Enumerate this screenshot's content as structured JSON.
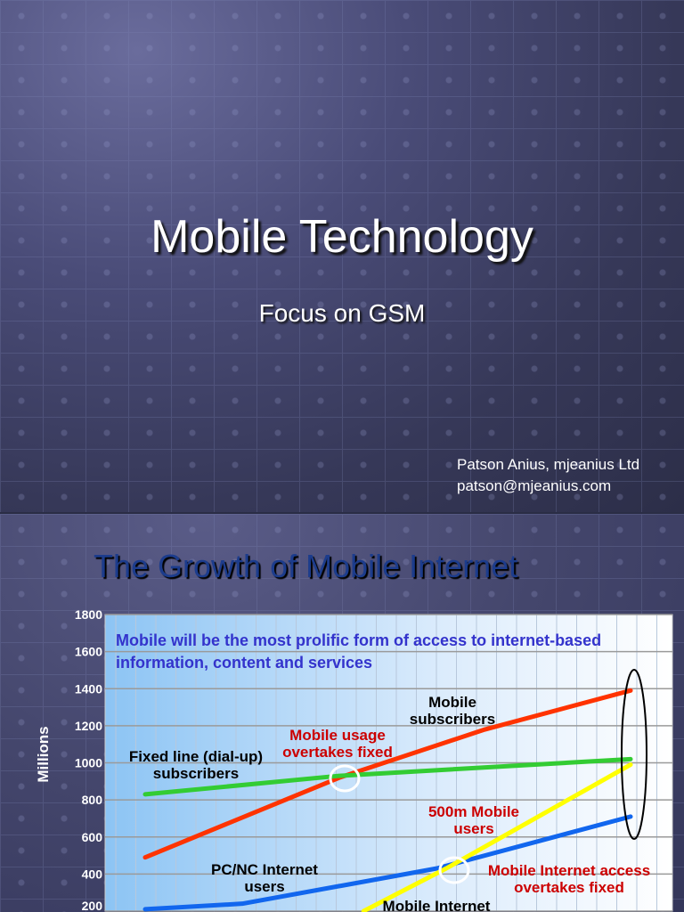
{
  "slide1": {
    "title": "Mobile Technology",
    "subtitle": "Focus on GSM",
    "author": "Patson Anius, mjeanius Ltd",
    "email": "patson@mjeanius.com"
  },
  "slide2": {
    "title": "The Growth of Mobile Internet"
  },
  "chart_data": {
    "type": "line",
    "ylabel": "Millions",
    "ylim": [
      200,
      1800
    ],
    "yticks": [
      "1800",
      "1600",
      "1400",
      "1200",
      "1000",
      "800",
      "600",
      "400",
      "200"
    ],
    "grid": true,
    "headline": [
      "Mobile will be the most prolific form of access to internet-based",
      "information, content and services"
    ],
    "series": [
      {
        "name": "Mobile subscribers",
        "color": "#ff3300",
        "points": [
          [
            0,
            490
          ],
          [
            4,
            920
          ],
          [
            7,
            1180
          ],
          [
            10,
            1390
          ]
        ]
      },
      {
        "name": "Fixed line (dial-up) subscribers",
        "color": "#33cc33",
        "points": [
          [
            0,
            830
          ],
          [
            4,
            930
          ],
          [
            10,
            1020
          ]
        ]
      },
      {
        "name": "PC/NC Internet users",
        "color": "#1166ee",
        "points": [
          [
            0,
            210
          ],
          [
            2,
            240
          ],
          [
            6,
            430
          ],
          [
            10,
            710
          ]
        ]
      },
      {
        "name": "Mobile Internet",
        "color": "#ffff00",
        "points": [
          [
            4.5,
            200
          ],
          [
            6.2,
            430
          ],
          [
            10,
            990
          ]
        ]
      }
    ],
    "labels": {
      "mobile_subs": [
        "Mobile",
        "subscribers"
      ],
      "fixed": [
        "Fixed line (dial-up)",
        "subscribers"
      ],
      "pc": [
        "PC/NC Internet",
        "users"
      ],
      "mobile_inet": "Mobile Internet",
      "usage": [
        "Mobile usage",
        "overtakes fixed"
      ],
      "m500": [
        "500m Mobile",
        "users"
      ],
      "access": [
        "Mobile Internet access",
        "overtakes fixed"
      ]
    }
  }
}
